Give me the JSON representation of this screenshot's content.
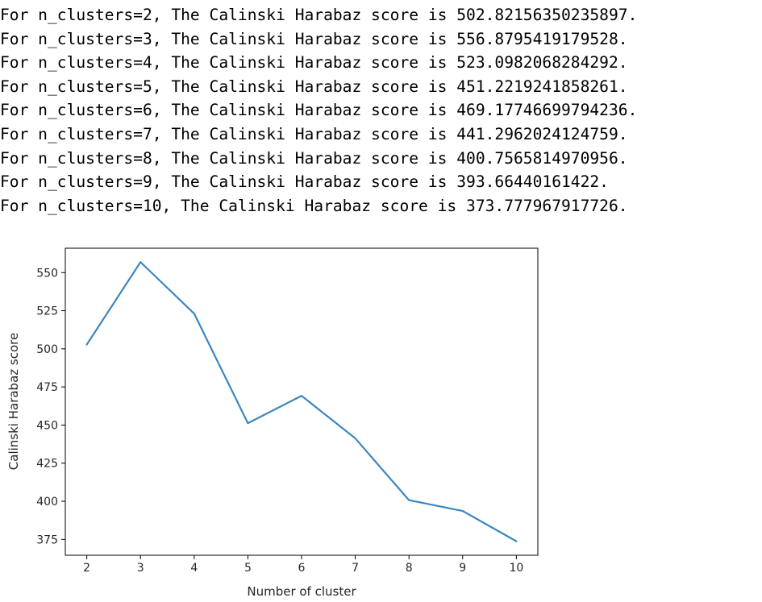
{
  "output": {
    "lines": [
      "For n_clusters=2, The Calinski Harabaz score is 502.82156350235897.",
      "For n_clusters=3, The Calinski Harabaz score is 556.8795419179528.",
      "For n_clusters=4, The Calinski Harabaz score is 523.0982068284292.",
      "For n_clusters=5, The Calinski Harabaz score is 451.2219241858261.",
      "For n_clusters=6, The Calinski Harabaz score is 469.17746699794236.",
      "For n_clusters=7, The Calinski Harabaz score is 441.2962024124759.",
      "For n_clusters=8, The Calinski Harabaz score is 400.7565814970956.",
      "For n_clusters=9, The Calinski Harabaz score is 393.66440161422.",
      "For n_clusters=10, The Calinski Harabaz score is 373.777967917726."
    ]
  },
  "chart_data": {
    "type": "line",
    "title": "",
    "xlabel": "Number of cluster",
    "ylabel": "Calinski Harabaz score",
    "x": [
      2,
      3,
      4,
      5,
      6,
      7,
      8,
      9,
      10
    ],
    "series": [
      {
        "values": [
          502.82156350235897,
          556.8795419179528,
          523.0982068284292,
          451.2219241858261,
          469.17746699794236,
          441.2962024124759,
          400.7565814970956,
          393.66440161422,
          373.777967917726
        ],
        "color": "#3c86c0"
      }
    ],
    "xticks": [
      2,
      3,
      4,
      5,
      6,
      7,
      8,
      9,
      10
    ],
    "yticks": [
      375,
      400,
      425,
      450,
      475,
      500,
      525,
      550
    ],
    "xlim": [
      1.6,
      10.4
    ],
    "ylim": [
      364.6,
      566.0
    ],
    "grid": false,
    "legend": false
  }
}
